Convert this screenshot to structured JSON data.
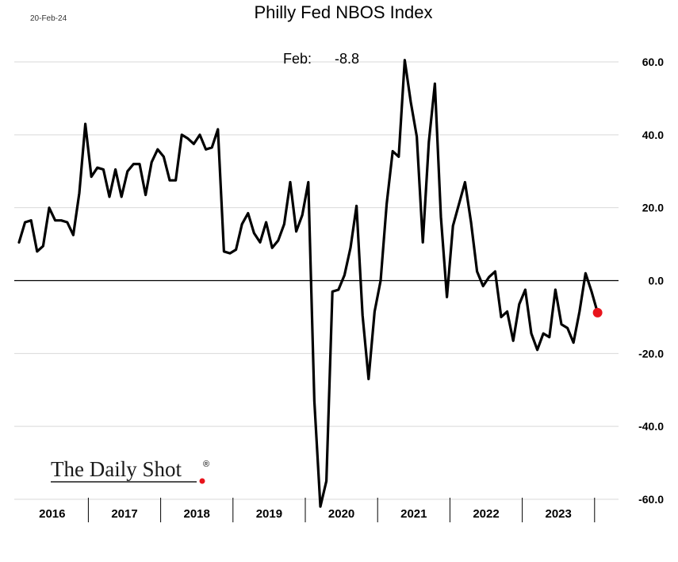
{
  "date_stamp": "20-Feb-24",
  "annotation": {
    "label": "Feb:",
    "value": "-8.8"
  },
  "logo": "The Daily Shot",
  "logo_mark": "®",
  "colors": {
    "line": "#000000",
    "marker": "#e8141c",
    "grid": "#d9d9d9",
    "zero": "#000000",
    "logo_dot": "#e8141c"
  },
  "chart_data": {
    "type": "line",
    "title": "Philly Fed NBOS Index",
    "xlabel": "",
    "ylabel": "",
    "ylim": [
      -60,
      60
    ],
    "y_ticks": [
      60,
      40,
      20,
      0,
      -20,
      -40,
      -60
    ],
    "y_tick_labels": [
      "60.0",
      "40.0",
      "20.0",
      "0.0",
      "-20.0",
      "-40.0",
      "-60.0"
    ],
    "y_axis_side": "right",
    "grid": true,
    "years": [
      "2016",
      "2017",
      "2018",
      "2019",
      "2020",
      "2021",
      "2022",
      "2023"
    ],
    "x_start": "2016-01",
    "x_end": "2024-02",
    "series": [
      {
        "values": [
          10.5,
          16,
          16.5,
          8,
          9.5,
          20,
          16.5,
          16.5,
          16,
          12.5,
          24,
          43,
          28.5,
          31,
          30.5,
          23,
          30.5,
          23,
          30,
          32,
          32,
          23.5,
          32.5,
          36,
          34,
          27.5,
          27.5,
          40,
          39,
          37.5,
          40,
          36,
          36.5,
          41.5,
          8,
          7.5,
          8.5,
          15.5,
          18.5,
          13,
          10.5,
          16,
          9,
          11,
          15.5,
          27,
          13.5,
          18,
          27,
          -33,
          -68,
          -55,
          -3,
          -2.5,
          1.5,
          9,
          20.5,
          -9.5,
          -27,
          -8.5,
          0,
          21,
          35.5,
          34,
          60.5,
          49,
          39.5,
          10.5,
          38,
          54,
          17.5,
          -4.5,
          15,
          21,
          27,
          16,
          2.5,
          -1.5,
          1,
          2.5,
          -10,
          -8.5,
          -16.5,
          -6.5,
          -2.5,
          -14.5,
          -19,
          -14.5,
          -15.5,
          -2.5,
          -12,
          -13,
          -17,
          -8.5,
          2,
          -3,
          -8.8
        ]
      }
    ],
    "last_point_marker": true
  }
}
